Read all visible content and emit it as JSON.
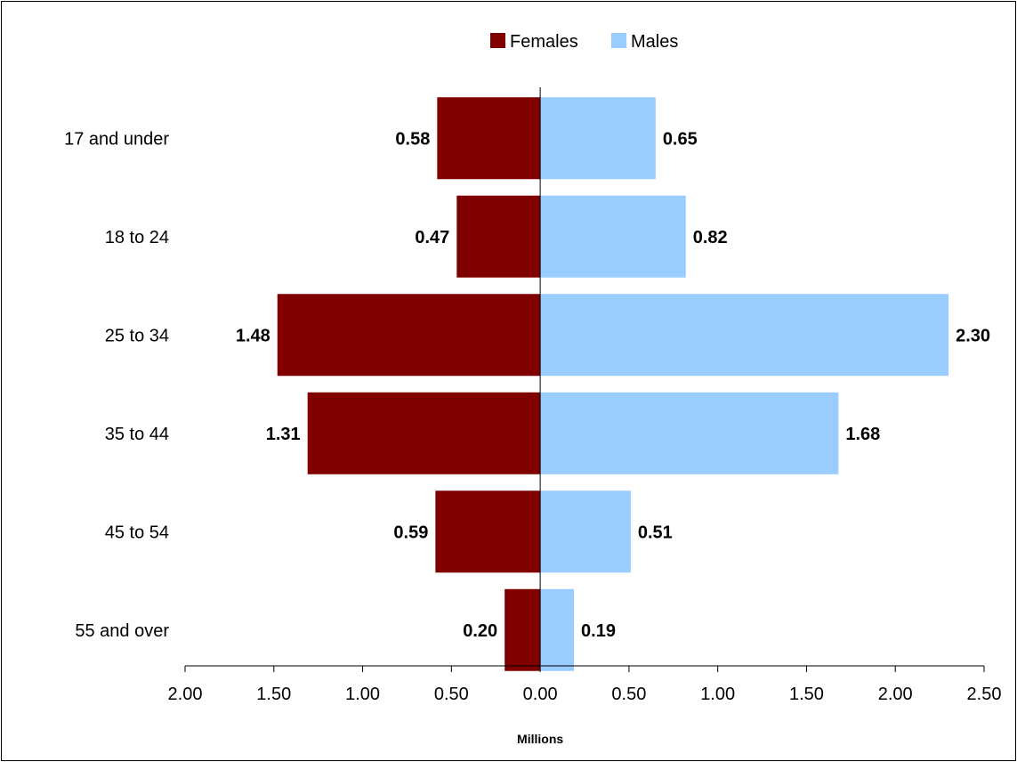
{
  "chart_data": {
    "type": "bar",
    "orientation": "horizontal",
    "layout": "population-pyramid",
    "categories": [
      "17 and under",
      "18 to 24",
      "25 to 34",
      "35 to 44",
      "45 to 54",
      "55 and over"
    ],
    "series": [
      {
        "name": "Females",
        "color": "#800000",
        "direction": "left",
        "values": [
          0.58,
          0.47,
          1.48,
          1.31,
          0.59,
          0.2
        ],
        "labels": [
          "0.58",
          "0.47",
          "1.48",
          "1.31",
          "0.59",
          "0.20"
        ]
      },
      {
        "name": "Males",
        "color": "#99CCFF",
        "direction": "right",
        "values": [
          0.65,
          0.82,
          2.3,
          1.68,
          0.51,
          0.19
        ],
        "labels": [
          "0.65",
          "0.82",
          "2.30",
          "1.68",
          "0.51",
          "0.19"
        ]
      }
    ],
    "xlabel": "Millions",
    "xlim": [
      -2.0,
      2.5
    ],
    "x_ticks": [
      -2.0,
      -1.5,
      -1.0,
      -0.5,
      0.0,
      0.5,
      1.0,
      1.5,
      2.0,
      2.5
    ],
    "x_tick_labels": [
      "2.00",
      "1.50",
      "1.00",
      "0.50",
      "0.00",
      "0.50",
      "1.00",
      "1.50",
      "2.00",
      "2.50"
    ],
    "grid": false,
    "legend_position": "top"
  }
}
